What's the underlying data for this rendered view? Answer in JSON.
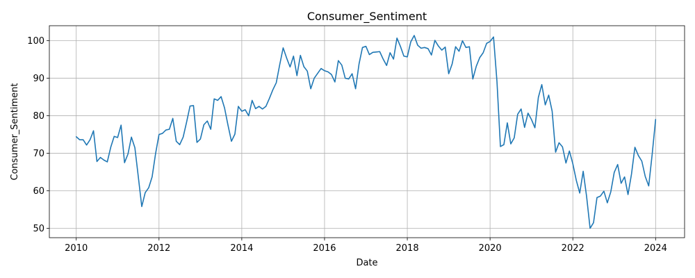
{
  "chart_data": {
    "type": "line",
    "title": "Consumer_Sentiment",
    "xlabel": "Date",
    "ylabel": "Consumer_Sentiment",
    "grid": true,
    "legend": "none",
    "xlim": [
      2009.35,
      2024.7
    ],
    "ylim": [
      47.5,
      104
    ],
    "xticks": [
      2010,
      2012,
      2014,
      2016,
      2018,
      2020,
      2022,
      2024
    ],
    "xtick_labels": [
      "2010",
      "2012",
      "2014",
      "2016",
      "2018",
      "2020",
      "2022",
      "2024"
    ],
    "yticks": [
      50,
      60,
      70,
      80,
      90,
      100
    ],
    "ytick_labels": [
      "50",
      "60",
      "70",
      "80",
      "90",
      "100"
    ],
    "line_color": "#1f77b4",
    "series": [
      {
        "start_year": 2010,
        "start_month": 1,
        "frequency": "monthly",
        "values": [
          74.4,
          73.6,
          73.6,
          72.2,
          73.6,
          76.0,
          67.8,
          68.9,
          68.2,
          67.7,
          71.6,
          74.5,
          74.2,
          77.5,
          67.5,
          69.8,
          74.3,
          71.5,
          63.7,
          55.8,
          59.5,
          60.8,
          63.7,
          69.9,
          75.0,
          75.3,
          76.2,
          76.4,
          79.3,
          73.2,
          72.3,
          74.3,
          78.3,
          82.6,
          82.7,
          72.9,
          73.8,
          77.6,
          78.6,
          76.4,
          84.5,
          84.1,
          85.1,
          82.1,
          77.5,
          73.2,
          75.1,
          82.5,
          81.2,
          81.6,
          80.0,
          84.1,
          81.9,
          82.5,
          81.8,
          82.5,
          84.6,
          86.9,
          88.8,
          93.6,
          98.1,
          95.4,
          93.0,
          95.9,
          90.7,
          96.1,
          93.1,
          91.9,
          87.2,
          90.0,
          91.3,
          92.6,
          92.0,
          91.7,
          91.0,
          89.0,
          94.7,
          93.5,
          90.0,
          89.8,
          91.2,
          87.2,
          93.8,
          98.2,
          98.5,
          96.3,
          96.9,
          97.0,
          97.1,
          95.1,
          93.4,
          96.8,
          95.1,
          100.7,
          98.5,
          95.9,
          95.7,
          99.7,
          101.4,
          98.8,
          98.0,
          98.2,
          97.9,
          96.2,
          100.1,
          98.6,
          97.5,
          98.3,
          91.2,
          93.8,
          98.4,
          97.2,
          100.0,
          98.2,
          98.4,
          89.8,
          93.2,
          95.5,
          96.8,
          99.3,
          99.8,
          101.0,
          89.1,
          71.8,
          72.3,
          78.1,
          72.5,
          74.1,
          80.4,
          81.8,
          76.9,
          80.7,
          79.0,
          76.8,
          84.9,
          88.3,
          82.9,
          85.5,
          81.2,
          70.3,
          72.8,
          71.7,
          67.4,
          70.6,
          67.2,
          62.8,
          59.4,
          65.2,
          58.4,
          50.0,
          51.5,
          58.2,
          58.6,
          59.9,
          56.8,
          59.7,
          64.9,
          67.0,
          62.0,
          63.7,
          59.0,
          64.4,
          71.6,
          69.4,
          67.9,
          63.8,
          61.3,
          69.7,
          79.0
        ]
      }
    ]
  }
}
